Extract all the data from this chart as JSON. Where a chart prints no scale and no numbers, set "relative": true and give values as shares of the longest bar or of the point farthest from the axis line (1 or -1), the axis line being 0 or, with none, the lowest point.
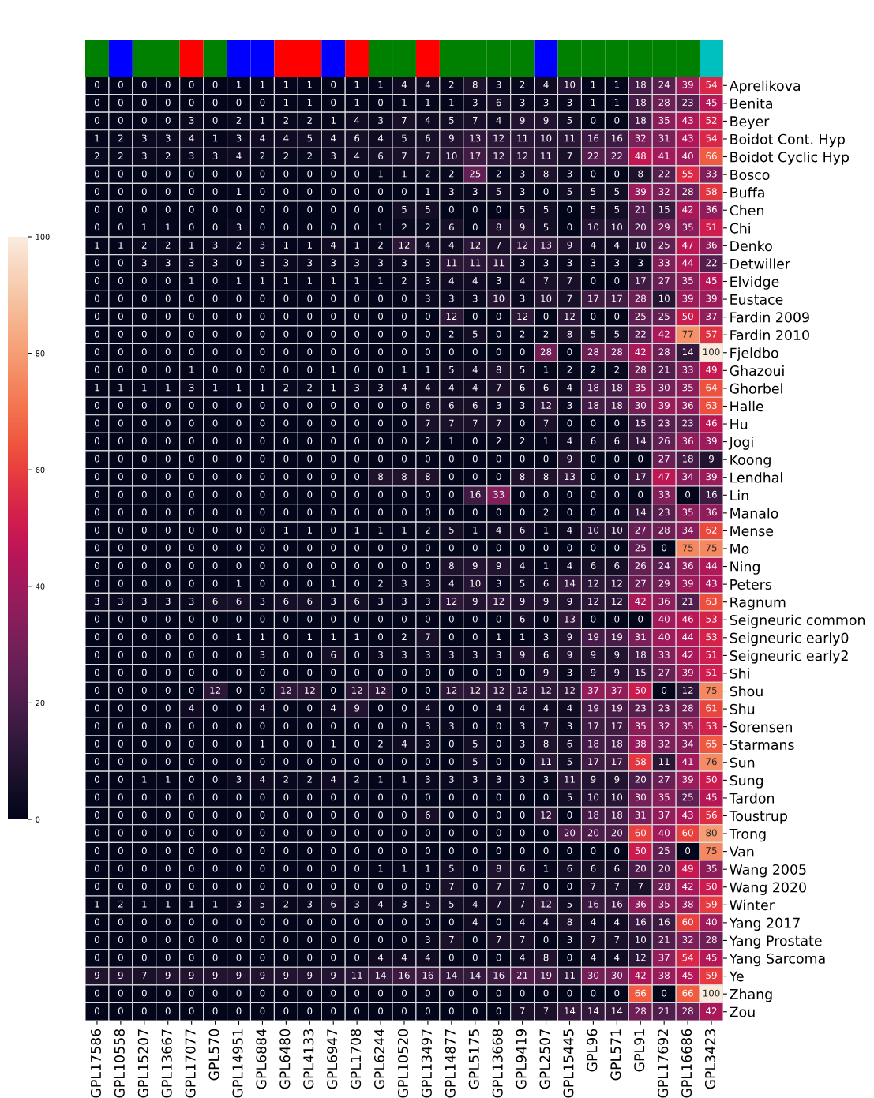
{
  "chart_data": [
    {
      "type": "bar",
      "relative": true,
      "categories": [
        null,
        null,
        null,
        null,
        null,
        null,
        null,
        null,
        null,
        null,
        null,
        null,
        null,
        null,
        null,
        null,
        null,
        null,
        null,
        null,
        null,
        null,
        null,
        null,
        null,
        null,
        null
      ],
      "values": [
        1,
        1,
        1,
        1,
        1,
        1,
        1,
        1,
        1,
        1,
        1,
        1,
        1,
        1,
        1,
        1,
        1,
        1,
        1,
        1,
        1,
        1,
        1,
        1,
        1,
        1,
        1
      ],
      "colors": [
        "#008000",
        "#0000ff",
        "#008000",
        "#008000",
        "#ff0000",
        "#008000",
        "#0000ff",
        "#0000ff",
        "#ff0000",
        "#ff0000",
        "#0000ff",
        "#ff0000",
        "#008000",
        "#008000",
        "#ff0000",
        "#008000",
        "#008000",
        "#008000",
        "#008000",
        "#0000ff",
        "#008000",
        "#008000",
        "#008000",
        "#008000",
        "#008000",
        "#008000",
        "#00bfbf"
      ]
    },
    {
      "type": "heatmap",
      "data_labels": true,
      "clim": [
        0,
        100
      ],
      "cticks": [
        0,
        20,
        40,
        60,
        80,
        100
      ],
      "categories": [
        "GPL17586",
        "GPL10558",
        "GPL15207",
        "GPL13667",
        "GPL17077",
        "GPL570",
        "GPL14951",
        "GPL6884",
        "GPL6480",
        "GPL4133",
        "GPL6947",
        "GPL1708",
        "GPL6244",
        "GPL10520",
        "GPL13497",
        "GPL14877",
        "GPL5175",
        "GPL13668",
        "GPL9419",
        "GPL2507",
        "GPL15445",
        "GPL96",
        "GPL571",
        "GPL91",
        "GPL17692",
        "GPL16686",
        "GPL3423"
      ],
      "y_categories": [
        "Aprelikova",
        "Benita",
        "Beyer",
        "Boidot Cont. Hyp",
        "Boidot Cyclic Hyp",
        "Bosco",
        "Buffa",
        "Chen",
        "Chi",
        "Denko",
        "Detwiller",
        "Elvidge",
        "Eustace",
        "Fardin 2009",
        "Fardin 2010",
        "Fjeldbo",
        "Ghazoui",
        "Ghorbel",
        "Halle",
        "Hu",
        "Jogi",
        "Koong",
        "Lendhal",
        "Lin",
        "Manalo",
        "Mense",
        "Mo",
        "Ning",
        "Peters",
        "Ragnum",
        "Seigneuric common",
        "Seigneuric early0",
        "Seigneuric early2",
        "Shi",
        "Shou",
        "Shu",
        "Sorensen",
        "Starmans",
        "Sun",
        "Sung",
        "Tardon",
        "Toustrup",
        "Trong",
        "Van",
        "Wang 2005",
        "Wang 2020",
        "Winter",
        "Yang 2017",
        "Yang Prostate",
        "Yang Sarcoma",
        "Ye",
        "Zhang",
        "Zou"
      ],
      "cells": [
        [
          0,
          0,
          0,
          0,
          0,
          0,
          1,
          1,
          1,
          1,
          0,
          1,
          1,
          4,
          4,
          2,
          8,
          3,
          2,
          4,
          10,
          1,
          1,
          18,
          24,
          39,
          54
        ],
        [
          0,
          0,
          0,
          0,
          0,
          0,
          0,
          0,
          1,
          1,
          0,
          1,
          0,
          1,
          1,
          1,
          3,
          6,
          3,
          3,
          3,
          1,
          1,
          18,
          28,
          23,
          45
        ],
        [
          0,
          0,
          0,
          0,
          3,
          0,
          2,
          1,
          2,
          2,
          1,
          4,
          3,
          7,
          4,
          5,
          7,
          4,
          9,
          9,
          5,
          0,
          0,
          18,
          35,
          43,
          52
        ],
        [
          1,
          2,
          3,
          3,
          4,
          1,
          3,
          4,
          4,
          5,
          4,
          6,
          4,
          5,
          6,
          9,
          13,
          12,
          11,
          10,
          11,
          16,
          16,
          32,
          31,
          43,
          54
        ],
        [
          2,
          2,
          3,
          2,
          3,
          3,
          4,
          2,
          2,
          2,
          3,
          4,
          6,
          7,
          7,
          10,
          17,
          12,
          12,
          11,
          7,
          22,
          22,
          48,
          41,
          40,
          66
        ],
        [
          0,
          0,
          0,
          0,
          0,
          0,
          0,
          0,
          0,
          0,
          0,
          0,
          1,
          1,
          2,
          2,
          25,
          2,
          3,
          8,
          3,
          0,
          0,
          8,
          22,
          55,
          33
        ],
        [
          0,
          0,
          0,
          0,
          0,
          0,
          1,
          0,
          0,
          0,
          0,
          0,
          0,
          0,
          1,
          3,
          3,
          5,
          3,
          0,
          5,
          5,
          5,
          39,
          32,
          28,
          58
        ],
        [
          0,
          0,
          0,
          0,
          0,
          0,
          0,
          0,
          0,
          0,
          0,
          0,
          0,
          5,
          5,
          0,
          0,
          0,
          5,
          5,
          0,
          5,
          5,
          21,
          15,
          42,
          36
        ],
        [
          0,
          0,
          1,
          1,
          0,
          0,
          3,
          0,
          0,
          0,
          0,
          0,
          1,
          2,
          2,
          6,
          0,
          8,
          9,
          5,
          0,
          10,
          10,
          20,
          29,
          35,
          51
        ],
        [
          1,
          1,
          2,
          2,
          1,
          3,
          2,
          3,
          1,
          1,
          4,
          1,
          2,
          12,
          4,
          4,
          12,
          7,
          12,
          13,
          9,
          4,
          4,
          10,
          25,
          47,
          36
        ],
        [
          0,
          0,
          3,
          3,
          3,
          3,
          0,
          3,
          3,
          3,
          3,
          3,
          3,
          3,
          3,
          11,
          11,
          11,
          3,
          3,
          3,
          3,
          3,
          3,
          33,
          44,
          22
        ],
        [
          0,
          0,
          0,
          0,
          1,
          0,
          1,
          1,
          1,
          1,
          1,
          1,
          1,
          2,
          3,
          4,
          4,
          3,
          4,
          7,
          7,
          0,
          0,
          17,
          27,
          35,
          45
        ],
        [
          0,
          0,
          0,
          0,
          0,
          0,
          0,
          0,
          0,
          0,
          0,
          0,
          0,
          0,
          3,
          3,
          3,
          10,
          3,
          10,
          7,
          17,
          17,
          28,
          10,
          39,
          39
        ],
        [
          0,
          0,
          0,
          0,
          0,
          0,
          0,
          0,
          0,
          0,
          0,
          0,
          0,
          0,
          0,
          12,
          0,
          0,
          12,
          0,
          12,
          0,
          0,
          25,
          25,
          50,
          37
        ],
        [
          0,
          0,
          0,
          0,
          0,
          0,
          0,
          0,
          0,
          0,
          0,
          0,
          0,
          0,
          0,
          2,
          5,
          0,
          2,
          2,
          8,
          5,
          5,
          22,
          42,
          77,
          57
        ],
        [
          0,
          0,
          0,
          0,
          0,
          0,
          0,
          0,
          0,
          0,
          0,
          0,
          0,
          0,
          0,
          0,
          0,
          0,
          0,
          28,
          0,
          28,
          28,
          42,
          28,
          14,
          100
        ],
        [
          0,
          0,
          0,
          0,
          1,
          0,
          0,
          0,
          0,
          0,
          1,
          0,
          0,
          1,
          1,
          5,
          4,
          8,
          5,
          1,
          2,
          2,
          2,
          28,
          21,
          33,
          49
        ],
        [
          1,
          1,
          1,
          1,
          3,
          1,
          1,
          1,
          2,
          2,
          1,
          3,
          3,
          4,
          4,
          4,
          4,
          7,
          6,
          6,
          4,
          18,
          18,
          35,
          30,
          35,
          64
        ],
        [
          0,
          0,
          0,
          0,
          0,
          0,
          0,
          0,
          0,
          0,
          0,
          0,
          0,
          0,
          6,
          6,
          6,
          3,
          3,
          12,
          3,
          18,
          18,
          30,
          39,
          36,
          63
        ],
        [
          0,
          0,
          0,
          0,
          0,
          0,
          0,
          0,
          0,
          0,
          0,
          0,
          0,
          0,
          7,
          7,
          7,
          7,
          0,
          7,
          0,
          0,
          0,
          15,
          23,
          23,
          46
        ],
        [
          0,
          0,
          0,
          0,
          0,
          0,
          0,
          0,
          0,
          0,
          0,
          0,
          0,
          0,
          2,
          1,
          0,
          2,
          2,
          1,
          4,
          6,
          6,
          14,
          26,
          36,
          39
        ],
        [
          0,
          0,
          0,
          0,
          0,
          0,
          0,
          0,
          0,
          0,
          0,
          0,
          0,
          0,
          0,
          0,
          0,
          0,
          0,
          0,
          9,
          0,
          0,
          0,
          27,
          18,
          9
        ],
        [
          0,
          0,
          0,
          0,
          0,
          0,
          0,
          0,
          0,
          0,
          0,
          0,
          8,
          8,
          8,
          0,
          0,
          0,
          8,
          8,
          13,
          0,
          0,
          17,
          47,
          34,
          39
        ],
        [
          0,
          0,
          0,
          0,
          0,
          0,
          0,
          0,
          0,
          0,
          0,
          0,
          0,
          0,
          0,
          0,
          16,
          33,
          0,
          0,
          0,
          0,
          0,
          0,
          33,
          0,
          16
        ],
        [
          0,
          0,
          0,
          0,
          0,
          0,
          0,
          0,
          0,
          0,
          0,
          0,
          0,
          0,
          0,
          0,
          0,
          0,
          0,
          2,
          0,
          0,
          0,
          14,
          23,
          35,
          36
        ],
        [
          0,
          0,
          0,
          0,
          0,
          0,
          0,
          0,
          1,
          1,
          0,
          1,
          1,
          1,
          2,
          5,
          1,
          4,
          6,
          1,
          4,
          10,
          10,
          27,
          28,
          34,
          62
        ],
        [
          0,
          0,
          0,
          0,
          0,
          0,
          0,
          0,
          0,
          0,
          0,
          0,
          0,
          0,
          0,
          0,
          0,
          0,
          0,
          0,
          0,
          0,
          0,
          25,
          0,
          75,
          75
        ],
        [
          0,
          0,
          0,
          0,
          0,
          0,
          0,
          0,
          0,
          0,
          0,
          0,
          0,
          0,
          0,
          8,
          9,
          9,
          4,
          1,
          4,
          6,
          6,
          26,
          24,
          36,
          44
        ],
        [
          0,
          0,
          0,
          0,
          0,
          0,
          1,
          0,
          0,
          0,
          1,
          0,
          2,
          3,
          3,
          4,
          10,
          3,
          5,
          6,
          14,
          12,
          12,
          27,
          29,
          39,
          43
        ],
        [
          3,
          3,
          3,
          3,
          3,
          6,
          6,
          3,
          6,
          6,
          3,
          6,
          3,
          3,
          3,
          12,
          9,
          12,
          9,
          9,
          9,
          12,
          12,
          42,
          36,
          21,
          63
        ],
        [
          0,
          0,
          0,
          0,
          0,
          0,
          0,
          0,
          0,
          0,
          0,
          0,
          0,
          0,
          0,
          0,
          0,
          0,
          6,
          0,
          13,
          0,
          0,
          0,
          40,
          46,
          53
        ],
        [
          0,
          0,
          0,
          0,
          0,
          0,
          1,
          1,
          0,
          1,
          1,
          1,
          0,
          2,
          7,
          0,
          0,
          1,
          1,
          3,
          9,
          19,
          19,
          31,
          40,
          44,
          53
        ],
        [
          0,
          0,
          0,
          0,
          0,
          0,
          0,
          3,
          0,
          0,
          6,
          0,
          3,
          3,
          3,
          3,
          3,
          3,
          9,
          6,
          9,
          9,
          9,
          18,
          33,
          42,
          51
        ],
        [
          0,
          0,
          0,
          0,
          0,
          0,
          0,
          0,
          0,
          0,
          0,
          0,
          0,
          0,
          0,
          0,
          0,
          0,
          0,
          9,
          3,
          9,
          9,
          15,
          27,
          39,
          51
        ],
        [
          0,
          0,
          0,
          0,
          0,
          12,
          0,
          0,
          12,
          12,
          0,
          12,
          12,
          0,
          0,
          12,
          12,
          12,
          12,
          12,
          12,
          37,
          37,
          50,
          0,
          12,
          75
        ],
        [
          0,
          0,
          0,
          0,
          4,
          0,
          0,
          4,
          0,
          0,
          4,
          9,
          0,
          0,
          4,
          0,
          0,
          4,
          4,
          4,
          4,
          19,
          19,
          23,
          23,
          28,
          61
        ],
        [
          0,
          0,
          0,
          0,
          0,
          0,
          0,
          0,
          0,
          0,
          0,
          0,
          0,
          0,
          3,
          3,
          0,
          0,
          3,
          7,
          3,
          17,
          17,
          35,
          32,
          35,
          53
        ],
        [
          0,
          0,
          0,
          0,
          0,
          0,
          0,
          1,
          0,
          0,
          1,
          0,
          2,
          4,
          3,
          0,
          5,
          0,
          3,
          8,
          6,
          18,
          18,
          38,
          32,
          34,
          65
        ],
        [
          0,
          0,
          0,
          0,
          0,
          0,
          0,
          0,
          0,
          0,
          0,
          0,
          0,
          0,
          0,
          0,
          5,
          0,
          0,
          11,
          5,
          17,
          17,
          58,
          11,
          41,
          76
        ],
        [
          0,
          0,
          1,
          1,
          0,
          0,
          3,
          4,
          2,
          2,
          4,
          2,
          1,
          1,
          3,
          3,
          3,
          3,
          3,
          3,
          11,
          9,
          9,
          20,
          27,
          39,
          50
        ],
        [
          0,
          0,
          0,
          0,
          0,
          0,
          0,
          0,
          0,
          0,
          0,
          0,
          0,
          0,
          0,
          0,
          0,
          0,
          0,
          0,
          5,
          10,
          10,
          30,
          35,
          25,
          45
        ],
        [
          0,
          0,
          0,
          0,
          0,
          0,
          0,
          0,
          0,
          0,
          0,
          0,
          0,
          0,
          6,
          0,
          0,
          0,
          0,
          12,
          0,
          18,
          18,
          31,
          37,
          43,
          56
        ],
        [
          0,
          0,
          0,
          0,
          0,
          0,
          0,
          0,
          0,
          0,
          0,
          0,
          0,
          0,
          0,
          0,
          0,
          0,
          0,
          0,
          20,
          20,
          20,
          60,
          40,
          60,
          80
        ],
        [
          0,
          0,
          0,
          0,
          0,
          0,
          0,
          0,
          0,
          0,
          0,
          0,
          0,
          0,
          0,
          0,
          0,
          0,
          0,
          0,
          0,
          0,
          0,
          50,
          25,
          0,
          75
        ],
        [
          0,
          0,
          0,
          0,
          0,
          0,
          0,
          0,
          0,
          0,
          0,
          0,
          1,
          1,
          1,
          5,
          0,
          8,
          6,
          1,
          6,
          6,
          6,
          20,
          20,
          49,
          35
        ],
        [
          0,
          0,
          0,
          0,
          0,
          0,
          0,
          0,
          0,
          0,
          0,
          0,
          0,
          0,
          0,
          7,
          0,
          7,
          7,
          0,
          0,
          7,
          7,
          7,
          28,
          42,
          50
        ],
        [
          1,
          2,
          1,
          1,
          1,
          1,
          3,
          5,
          2,
          3,
          6,
          3,
          4,
          3,
          5,
          5,
          4,
          7,
          7,
          12,
          5,
          16,
          16,
          36,
          35,
          38,
          59
        ],
        [
          0,
          0,
          0,
          0,
          0,
          0,
          0,
          0,
          0,
          0,
          0,
          0,
          0,
          0,
          0,
          0,
          4,
          0,
          4,
          4,
          8,
          4,
          4,
          16,
          16,
          60,
          40
        ],
        [
          0,
          0,
          0,
          0,
          0,
          0,
          0,
          0,
          0,
          0,
          0,
          0,
          0,
          0,
          3,
          7,
          0,
          7,
          7,
          0,
          3,
          7,
          7,
          10,
          21,
          32,
          28
        ],
        [
          0,
          0,
          0,
          0,
          0,
          0,
          0,
          0,
          0,
          0,
          0,
          0,
          4,
          4,
          4,
          0,
          0,
          0,
          4,
          8,
          0,
          4,
          4,
          12,
          37,
          54,
          45
        ],
        [
          9,
          9,
          7,
          9,
          9,
          9,
          9,
          9,
          9,
          9,
          9,
          11,
          14,
          16,
          16,
          14,
          14,
          16,
          21,
          19,
          11,
          30,
          30,
          42,
          38,
          45,
          59
        ],
        [
          0,
          0,
          0,
          0,
          0,
          0,
          0,
          0,
          0,
          0,
          0,
          0,
          0,
          0,
          0,
          0,
          0,
          0,
          0,
          0,
          0,
          0,
          0,
          66,
          0,
          66,
          100
        ],
        [
          0,
          0,
          0,
          0,
          0,
          0,
          0,
          0,
          0,
          0,
          0,
          0,
          0,
          0,
          0,
          0,
          0,
          0,
          7,
          7,
          14,
          14,
          14,
          28,
          21,
          28,
          42
        ]
      ]
    }
  ]
}
